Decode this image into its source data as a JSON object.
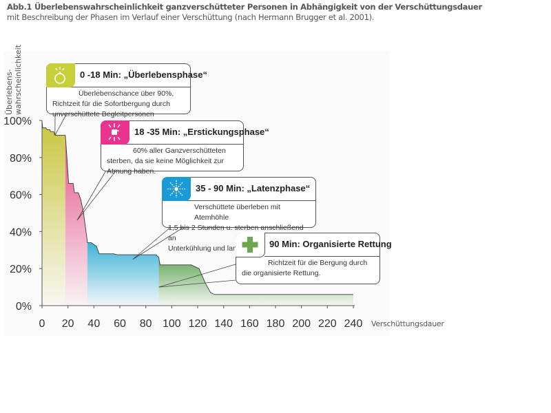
{
  "header": {
    "title": "Abb.1 Überlebenswahrscheinlichkeit ganzverschütteter Personen in Abhängigkeit von der Verschüttungsdauer",
    "subtitle": "mit Beschreibung der Phasen im Verlauf einer Verschüttung (nach Hermann Brugger et al. 2001)."
  },
  "chart_data": {
    "type": "area",
    "title": "Abb.1 Überlebenswahrscheinlichkeit ganzverschütteter Personen in Abhängigkeit von der Verschüttungsdauer",
    "subtitle": "mit Beschreibung der Phasen im Verlauf einer Verschüttung (nach Hermann Brugger et al. 2001).",
    "xlabel": "Verschüttungsdauer",
    "ylabel_lines": [
      "Überlebens-",
      "wahrscheinlichkeit"
    ],
    "xlim": [
      0,
      240
    ],
    "ylim": [
      0,
      100
    ],
    "x_ticks": [
      0,
      20,
      40,
      60,
      80,
      100,
      120,
      140,
      160,
      180,
      200,
      220,
      240
    ],
    "y_ticks": [
      0,
      20,
      40,
      60,
      80,
      100
    ],
    "y_tick_labels": [
      "0%",
      "20%",
      "40%",
      "60%",
      "80%",
      "100%"
    ],
    "grid": false,
    "series": [
      {
        "name": "Überlebenswahrscheinlichkeit",
        "points": [
          [
            0,
            100
          ],
          [
            0.5,
            96
          ],
          [
            3,
            96
          ],
          [
            4,
            95
          ],
          [
            6,
            95
          ],
          [
            6.5,
            94
          ],
          [
            9,
            94
          ],
          [
            10,
            92
          ],
          [
            18,
            92
          ],
          [
            19,
            82
          ],
          [
            20.5,
            66
          ],
          [
            24,
            66
          ],
          [
            25,
            61
          ],
          [
            28,
            61
          ],
          [
            30,
            57
          ],
          [
            32,
            50
          ],
          [
            34.5,
            37
          ],
          [
            35,
            34
          ],
          [
            38,
            34
          ],
          [
            40,
            33
          ],
          [
            42,
            32
          ],
          [
            44,
            28
          ],
          [
            55,
            28
          ],
          [
            58,
            27.5
          ],
          [
            88,
            27.5
          ],
          [
            90,
            26
          ],
          [
            91,
            22
          ],
          [
            100,
            22
          ],
          [
            115,
            22
          ],
          [
            121,
            20
          ],
          [
            126,
            12
          ],
          [
            130,
            7
          ],
          [
            133,
            6
          ],
          [
            240,
            6
          ]
        ]
      }
    ],
    "phases": [
      {
        "name": "Überlebensphase",
        "start": 0,
        "end": 18,
        "color": "#c9c63f"
      },
      {
        "name": "Erstickungsphase",
        "start": 18,
        "end": 35,
        "color": "#e55289"
      },
      {
        "name": "Latenzphase",
        "start": 35,
        "end": 90,
        "color": "#3fb3d8"
      },
      {
        "name": "Organisierte Rettung",
        "start": 90,
        "end": 240,
        "color": "#66a85a"
      }
    ],
    "annotations": [
      {
        "title": "0 -18 Min: „Überlebensphase“",
        "lines": [
          "Überlebenschance über 90%,",
          "Richtzeit für die Sofortbergung durch",
          "unverschüttete Begleitpersonen"
        ],
        "icon": "stopwatch-icon",
        "color": "#c7cf3a",
        "pointer_to": [
          10,
          92
        ]
      },
      {
        "title": "18 -35 Min: „Erstickungsphase“",
        "lines": [
          "60% aller Ganzverschütteten",
          "sterben, da sie keine Möglichkeit zur",
          "Atmung haben."
        ],
        "icon": "suffocation-icon",
        "color": "#e8348e",
        "pointer_to": [
          27,
          46
        ]
      },
      {
        "title": "35 - 90 Min: „Latenzphase“",
        "lines": [
          "Verschüttete überleben mit Atemhöhle",
          "1,5 bis 2 Stunden u. sterben anschließend an",
          "Unterkühlung und langsamem Ersticken."
        ],
        "icon": "snowflake-icon",
        "color": "#1a9ad6",
        "pointer_to": [
          70,
          25
        ]
      },
      {
        "title": "90 Min: Organisierte Rettung",
        "lines": [
          "Richtzeit für die Bergung durch",
          "die organisierte Rettung."
        ],
        "icon": "medical-cross-icon",
        "color": "#6aa84f",
        "pointer_to": [
          90,
          10
        ]
      }
    ]
  }
}
